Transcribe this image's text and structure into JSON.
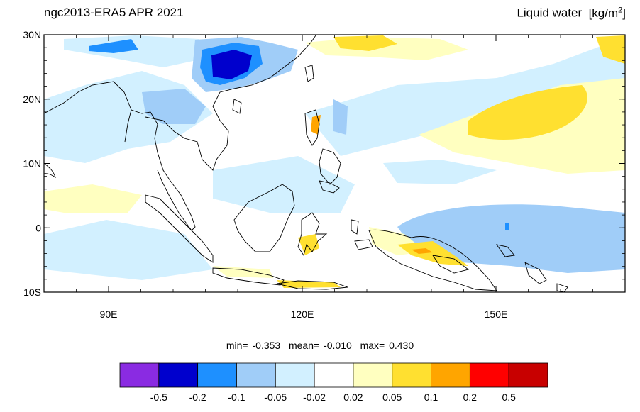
{
  "header": {
    "title_left": "ngc2013-ERA5 APR 2021",
    "title_right": "Liquid water",
    "units_prefix": "[kg/m",
    "units_sup": "2",
    "units_suffix": "]"
  },
  "map": {
    "lon_range": [
      80,
      170
    ],
    "lat_range": [
      -10,
      30
    ],
    "lat_ticks": [
      {
        "value": 30,
        "label": "30N"
      },
      {
        "value": 20,
        "label": "20N"
      },
      {
        "value": 10,
        "label": "10N"
      },
      {
        "value": 0,
        "label": "0"
      },
      {
        "value": -10,
        "label": "10S"
      }
    ],
    "lon_ticks": [
      {
        "value": 90,
        "label": "90E"
      },
      {
        "value": 120,
        "label": "120E"
      },
      {
        "value": 150,
        "label": "150E"
      }
    ],
    "field_description_regions": [
      {
        "lon": [
          105,
          116
        ],
        "lat": [
          21,
          28
        ],
        "level": "< -0.2"
      },
      {
        "lon": [
          135,
          170
        ],
        "lat": [
          -7,
          3
        ],
        "level": "-0.1 to -0.05"
      },
      {
        "lon": [
          140,
          170
        ],
        "lat": [
          13,
          22
        ],
        "level": "0.05 to 0.1"
      }
    ]
  },
  "stats": {
    "min_label": "min=",
    "min": "-0.353",
    "mean_label": "mean=",
    "mean": "-0.010",
    "max_label": "max=",
    "max": "0.430"
  },
  "colorbar": {
    "colors": [
      "#8a2be2",
      "#0000cd",
      "#1e90ff",
      "#a0cdf8",
      "#d2f0ff",
      "#ffffff",
      "#ffffc0",
      "#ffe030",
      "#ffa500",
      "#ff0000",
      "#c80000"
    ],
    "labels": [
      "-0.5",
      "-0.2",
      "-0.1",
      "-0.05",
      "-0.02",
      "0.02",
      "0.05",
      "0.1",
      "0.2",
      "0.5"
    ]
  }
}
